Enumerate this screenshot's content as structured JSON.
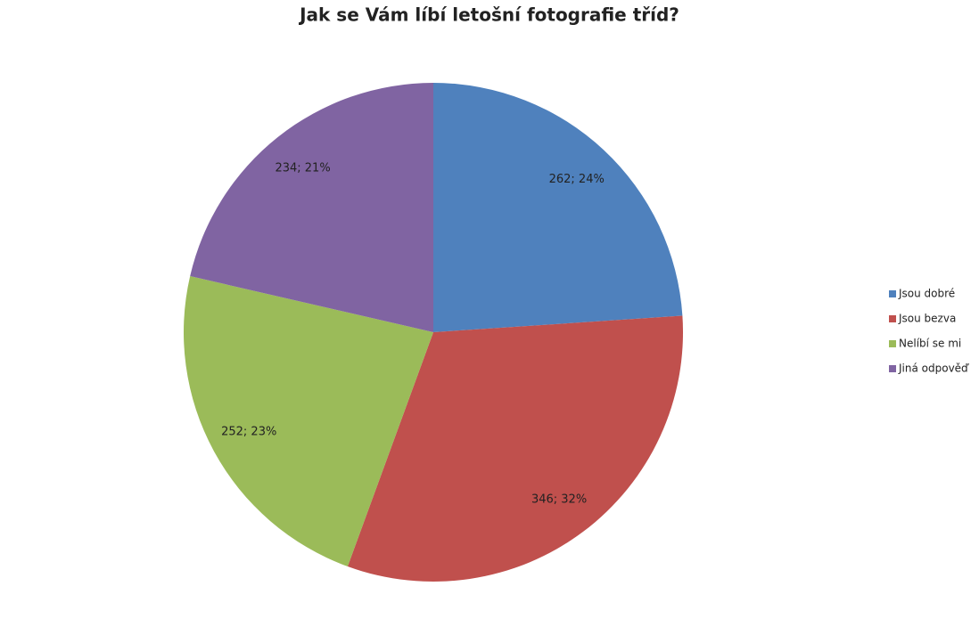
{
  "chart_data": {
    "type": "pie",
    "title": "Jak se Vám líbí letošní fotografie tříd?",
    "categories": [
      "Jsou dobré",
      "Jsou bezva",
      "Nelíbí se mi",
      "Jiná odpověď"
    ],
    "values": [
      262,
      346,
      252,
      234
    ],
    "value_labels": [
      "262; 24%",
      "346; 32%",
      "252; 23%",
      "234; 21%"
    ],
    "colors": [
      "#4f81bd",
      "#c0504d",
      "#9bbb59",
      "#8064a2"
    ],
    "legend": "right"
  }
}
